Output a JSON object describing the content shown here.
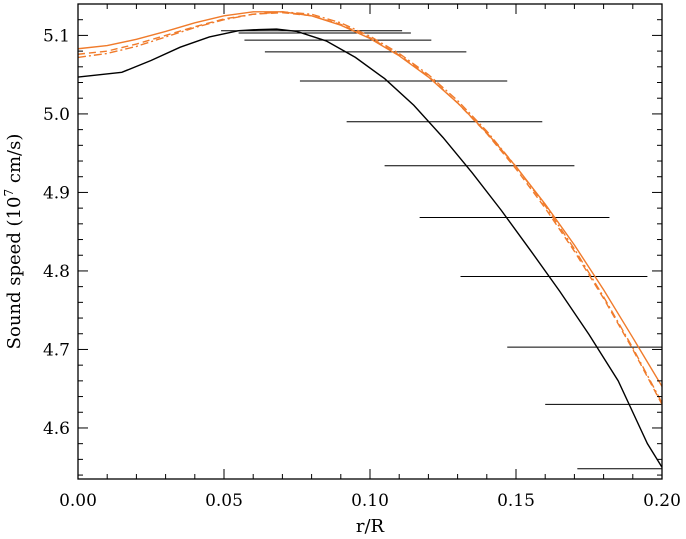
{
  "chart_data": {
    "type": "line",
    "xlabel": "r/R",
    "ylabel": "Sound speed (10",
    "ylabel_sup": "7",
    "ylabel_tail": " cm/s)",
    "xlim": [
      0.0,
      0.2
    ],
    "ylim": [
      4.535,
      5.14
    ],
    "xticks": [
      0.0,
      0.05,
      0.1,
      0.15,
      0.2
    ],
    "xtick_labels": [
      "0.00",
      "0.05",
      "0.10",
      "0.15",
      "0.20"
    ],
    "yticks": [
      4.6,
      4.7,
      4.8,
      4.9,
      5.0,
      5.1
    ],
    "ytick_labels": [
      "4.6",
      "4.7",
      "4.8",
      "4.9",
      "5.0",
      "5.1"
    ],
    "grid": false,
    "colors": {
      "black": "#000000",
      "orange": "#f07b2b"
    },
    "series": [
      {
        "color": "#000000",
        "dash": "solid",
        "x": [
          0.0,
          0.015,
          0.025,
          0.035,
          0.045,
          0.055,
          0.062,
          0.068,
          0.075,
          0.085,
          0.095,
          0.105,
          0.115,
          0.125,
          0.135,
          0.145,
          0.155,
          0.165,
          0.175,
          0.185,
          0.195,
          0.2
        ],
        "y": [
          5.047,
          5.053,
          5.068,
          5.085,
          5.098,
          5.106,
          5.1075,
          5.108,
          5.105,
          5.093,
          5.072,
          5.045,
          5.011,
          4.97,
          4.925,
          4.877,
          4.826,
          4.774,
          4.719,
          4.66,
          4.58,
          4.55
        ]
      },
      {
        "color": "#f07b2b",
        "dash": "solid",
        "x": [
          0.0,
          0.01,
          0.02,
          0.03,
          0.04,
          0.05,
          0.06,
          0.07,
          0.08,
          0.09,
          0.1,
          0.11,
          0.12,
          0.13,
          0.14,
          0.15,
          0.16,
          0.17,
          0.18,
          0.19,
          0.2
        ],
        "y": [
          5.083,
          5.087,
          5.095,
          5.105,
          5.116,
          5.125,
          5.13,
          5.13,
          5.125,
          5.113,
          5.096,
          5.074,
          5.047,
          5.014,
          4.976,
          4.933,
          4.885,
          4.833,
          4.776,
          4.715,
          4.653
        ]
      },
      {
        "color": "#f07b2b",
        "dash": "dashed",
        "x": [
          0.0,
          0.01,
          0.02,
          0.03,
          0.04,
          0.05,
          0.06,
          0.07,
          0.08,
          0.09,
          0.1,
          0.11,
          0.12,
          0.13,
          0.14,
          0.15,
          0.16,
          0.17,
          0.18,
          0.19,
          0.2
        ],
        "y": [
          5.076,
          5.08,
          5.089,
          5.1,
          5.111,
          5.121,
          5.127,
          5.129,
          5.125,
          5.114,
          5.097,
          5.075,
          5.048,
          5.014,
          4.975,
          4.93,
          4.88,
          4.825,
          4.765,
          4.7,
          4.63
        ]
      },
      {
        "color": "#f07b2b",
        "dash": "dashdot",
        "x": [
          0.0,
          0.01,
          0.02,
          0.03,
          0.04,
          0.05,
          0.06,
          0.07,
          0.08,
          0.09,
          0.1,
          0.11,
          0.12,
          0.13,
          0.14,
          0.15,
          0.16,
          0.17,
          0.18,
          0.19,
          0.2
        ],
        "y": [
          5.072,
          5.077,
          5.086,
          5.098,
          5.11,
          5.12,
          5.127,
          5.13,
          5.127,
          5.116,
          5.099,
          5.077,
          5.05,
          5.017,
          4.978,
          4.933,
          4.883,
          4.828,
          4.767,
          4.702,
          4.632
        ]
      }
    ],
    "error_bars": [
      {
        "x_min": 0.049,
        "x_max": 0.111,
        "y": 5.106
      },
      {
        "x_min": 0.055,
        "x_max": 0.114,
        "y": 5.103
      },
      {
        "x_min": 0.057,
        "x_max": 0.121,
        "y": 5.094
      },
      {
        "x_min": 0.064,
        "x_max": 0.133,
        "y": 5.079
      },
      {
        "x_min": 0.076,
        "x_max": 0.147,
        "y": 5.042
      },
      {
        "x_min": 0.092,
        "x_max": 0.159,
        "y": 4.99
      },
      {
        "x_min": 0.105,
        "x_max": 0.17,
        "y": 4.934
      },
      {
        "x_min": 0.117,
        "x_max": 0.182,
        "y": 4.868
      },
      {
        "x_min": 0.131,
        "x_max": 0.195,
        "y": 4.793
      },
      {
        "x_min": 0.147,
        "x_max": 0.2,
        "y": 4.703
      },
      {
        "x_min": 0.16,
        "x_max": 0.2,
        "y": 4.63
      },
      {
        "x_min": 0.171,
        "x_max": 0.2,
        "y": 4.548
      }
    ]
  }
}
